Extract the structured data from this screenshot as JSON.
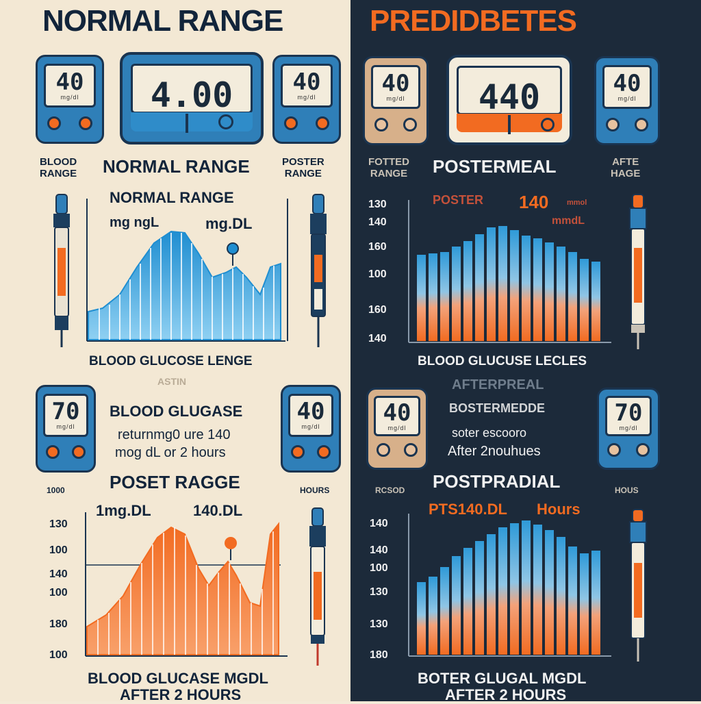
{
  "left": {
    "title": "NORMAL RANGE",
    "meters_top": [
      "40",
      "4.00",
      "40"
    ],
    "meter_unit": "mg/dl",
    "label_blood_range": [
      "BLOOD",
      "RANGE"
    ],
    "label_normal_range": "NORMAL RANGE",
    "label_poster_range": [
      "POSTER",
      "RANGE"
    ],
    "chart1": {
      "title": "NORMAL RANGE",
      "units_left": "mg ngL",
      "units_right": "mg.DL",
      "caption": "BLOOD GLUCOSE LENGE"
    },
    "fasting_label": "ASTIN",
    "meters_bottom": [
      "70",
      "40"
    ],
    "info_lines": [
      "BLOOD GLUGASE",
      "returnmg0 ure 140",
      "mog dL or 2 hours"
    ],
    "poset_range": "POSET RAGGE",
    "side_left": "1000",
    "side_right": "HOURS",
    "chart2": {
      "unit_left": "1mg.DL",
      "unit_right": "140.DL",
      "yticks": [
        "130",
        "100",
        "140",
        "100",
        "180",
        "100"
      ],
      "caption_line1": "BLOOD GLUCASE MGDL",
      "caption_line2": "AFTER 2 HOURS"
    },
    "colors": {
      "blue": "#2f9ad8",
      "orange": "#f26b21",
      "navy": "#12243a"
    }
  },
  "right": {
    "title": "PREDIDBETES",
    "meters_top": [
      "40",
      "440",
      "40"
    ],
    "label_fotted_range": [
      "FOTTED",
      "RANGE"
    ],
    "label_postermeal": "POSTERMEAL",
    "label_afte_hage": [
      "AFTE",
      "HAGE"
    ],
    "chart1": {
      "yticks": [
        "130",
        "140",
        "160",
        "100",
        "160",
        "140"
      ],
      "overlay_left": "POSTER",
      "overlay_right": "140",
      "overlay_unit": "mmol",
      "overlay_unit2": "mmdL",
      "caption": "BLOOD GLUCUSE LECLES"
    },
    "aftermeal_label": "AFTERPREAL",
    "meters_bottom": [
      "40",
      "70"
    ],
    "info_lines": [
      "BOSTERMEDDE",
      "soter escooro",
      "After 2nouhues"
    ],
    "postprandial": "POSTPRADIAL",
    "side_left": "RCSOD",
    "sub_left": "PTS140.DL",
    "sub_right": "Hours",
    "side_right": "HOUS",
    "chart2": {
      "yticks": [
        "140",
        "140",
        "100",
        "130",
        "130",
        "180"
      ],
      "caption_line1": "BOTER GLUGAL MGDL",
      "caption_line2": "AFTER 2 HOURS"
    },
    "colors": {
      "background": "#1c2a3a",
      "orange": "#f26b21",
      "blue": "#2f9ad8"
    }
  }
}
